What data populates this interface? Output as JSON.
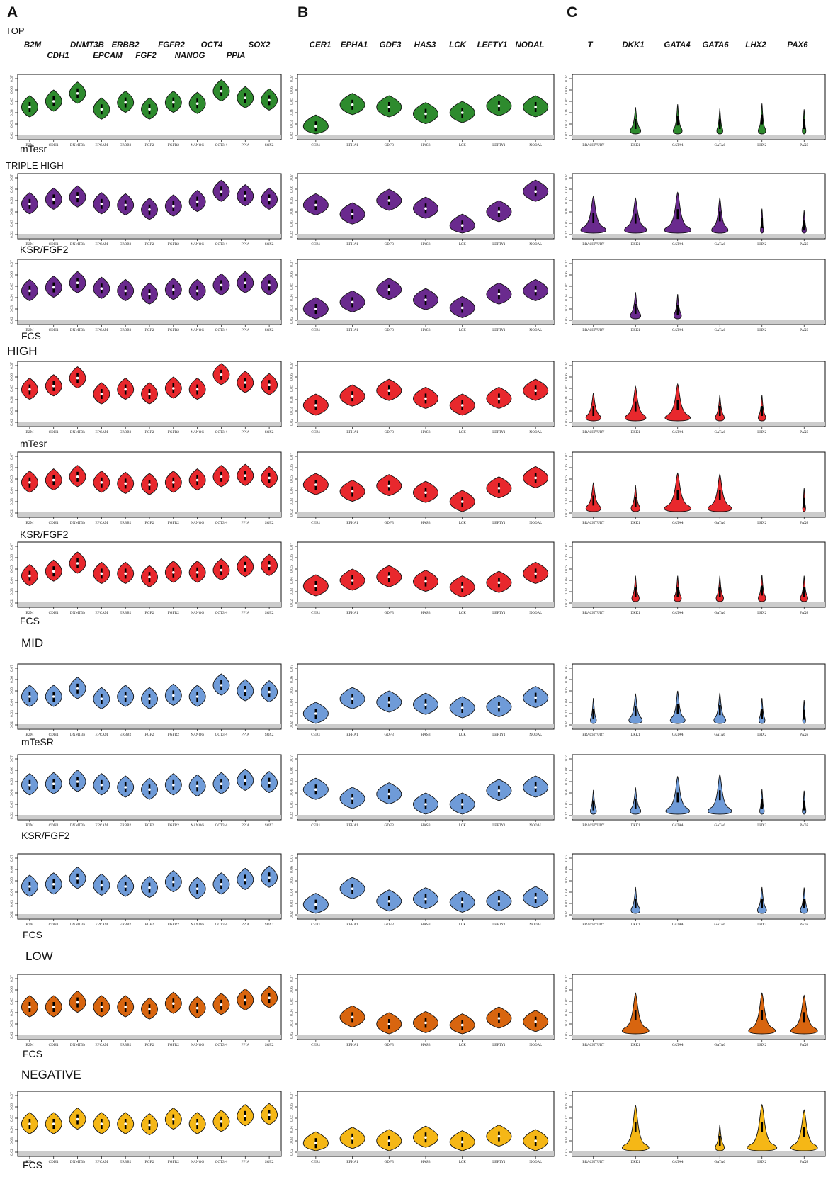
{
  "figure": {
    "panels": [
      "A",
      "B",
      "C"
    ],
    "gene_headers": {
      "A": [
        "B2M",
        "CDH1",
        "DNMT3B",
        "EPCAM",
        "ERBB2",
        "FGF2",
        "FGFR2",
        "NANOG",
        "OCT4",
        "PPIA",
        "SOX2"
      ],
      "B": [
        "CER1",
        "EPHA1",
        "GDF3",
        "HAS3",
        "LCK",
        "LEFTY1",
        "NODAL"
      ],
      "C": [
        "T",
        "DKK1",
        "GATA4",
        "GATA6",
        "LHX2",
        "PAX6"
      ]
    },
    "tier_labels": [
      "TOP",
      "TRIPLE HIGH",
      "HIGH",
      "MID",
      "LOW",
      "NEGATIVE"
    ],
    "condition_labels": [
      "mTesr",
      "KSR/FGF2",
      "FCS",
      "mTesr",
      "KSR/FGF2",
      "FCS",
      "mTeSR",
      "KSR/FGF2",
      "FCS",
      "FCS",
      "FCS"
    ],
    "tier_colors": {
      "TOP": "#2e8b2e",
      "TRIPLE HIGH": "#6a2a8e",
      "HIGH": "#e8282d",
      "MID": "#6f9bd8",
      "LOW": "#d8650f",
      "NEGATIVE": "#f5b716"
    },
    "axis_tick_labels": [
      "0.02",
      "0.03",
      "0.04",
      "0.05",
      "0.06",
      "0.07"
    ]
  },
  "chart_data": {
    "type": "violin",
    "title": "",
    "y_axis_ticks": [
      0.02,
      0.03,
      0.04,
      0.05,
      0.06,
      0.07
    ],
    "panel_tick_labels": {
      "A": [
        "B2M",
        "CDH1",
        "DNMT3b",
        "EPCAM",
        "ERBB2",
        "FGF2",
        "FGFR2",
        "NANOG",
        "OCT3-4",
        "PPIA",
        "SOX2"
      ],
      "B": [
        "CER1",
        "EPHA1",
        "GDF3",
        "HAS3",
        "LCK",
        "LEFTY1",
        "NODAL"
      ],
      "C": [
        "BRACHYURY",
        "DKK1",
        "GATA4",
        "GATA6",
        "LHX2",
        "PAX6"
      ]
    },
    "rows": [
      {
        "tier": "TOP",
        "condition": "mTesr",
        "A": [
          0.045,
          0.05,
          0.057,
          0.043,
          0.049,
          0.043,
          0.049,
          0.048,
          0.059,
          0.053,
          0.051
        ],
        "B": [
          0.028,
          0.047,
          0.045,
          0.039,
          0.04,
          0.046,
          0.045
        ],
        "C": [
          0,
          0.03,
          0.033,
          0.03,
          0.034,
          0.03
        ],
        "C_width": [
          0,
          0.35,
          0.3,
          0.2,
          0.25,
          0.12
        ]
      },
      {
        "tier": "TRIPLE HIGH",
        "condition": "KSR/FGF2",
        "A": [
          0.047,
          0.051,
          0.053,
          0.047,
          0.046,
          0.042,
          0.045,
          0.049,
          0.058,
          0.054,
          0.051
        ],
        "B": [
          0.046,
          0.038,
          0.05,
          0.043,
          0.028,
          0.04,
          0.058
        ],
        "C": [
          0.035,
          0.034,
          0.038,
          0.036,
          0.03,
          0.028
        ],
        "C_width": [
          0.85,
          0.75,
          0.9,
          0.55,
          0.1,
          0.15
        ]
      },
      {
        "tier": "TRIPLE HIGH",
        "condition": "FCS",
        "A": [
          0.046,
          0.049,
          0.053,
          0.048,
          0.046,
          0.043,
          0.047,
          0.046,
          0.051,
          0.053,
          0.051
        ],
        "B": [
          0.03,
          0.036,
          0.047,
          0.038,
          0.031,
          0.043,
          0.046
        ],
        "C": [
          0,
          0.03,
          0.029,
          0,
          0,
          0
        ],
        "C_width": [
          0,
          0.35,
          0.25,
          0,
          0,
          0
        ]
      },
      {
        "tier": "HIGH",
        "condition": "mTesr",
        "A": [
          0.049,
          0.052,
          0.059,
          0.045,
          0.049,
          0.045,
          0.05,
          0.049,
          0.062,
          0.055,
          0.053
        ],
        "B": [
          0.035,
          0.043,
          0.048,
          0.041,
          0.035,
          0.041,
          0.048
        ],
        "C": [
          0.03,
          0.034,
          0.035,
          0.03,
          0.03,
          0
        ],
        "C_width": [
          0.5,
          0.7,
          0.85,
          0.3,
          0.25,
          0
        ]
      },
      {
        "tier": "HIGH",
        "condition": "KSR/FGF2",
        "A": [
          0.047,
          0.049,
          0.052,
          0.047,
          0.046,
          0.045,
          0.047,
          0.049,
          0.052,
          0.053,
          0.051
        ],
        "B": [
          0.045,
          0.039,
          0.044,
          0.038,
          0.03,
          0.042,
          0.051
        ],
        "C": [
          0.031,
          0.03,
          0.036,
          0.036,
          0,
          0.029
        ],
        "C_width": [
          0.5,
          0.3,
          0.9,
          0.8,
          0,
          0.1
        ]
      },
      {
        "tier": "HIGH",
        "condition": "FCS",
        "A": [
          0.044,
          0.048,
          0.055,
          0.046,
          0.046,
          0.043,
          0.047,
          0.047,
          0.049,
          0.052,
          0.053
        ],
        "B": [
          0.035,
          0.04,
          0.043,
          0.039,
          0.034,
          0.038,
          0.046
        ],
        "C": [
          0,
          0.03,
          0.03,
          0.03,
          0.031,
          0.03
        ],
        "C_width": [
          0,
          0.25,
          0.25,
          0.25,
          0.25,
          0.25
        ]
      },
      {
        "tier": "MID",
        "condition": "mTeSR",
        "A": [
          0.045,
          0.045,
          0.052,
          0.043,
          0.045,
          0.043,
          0.046,
          0.045,
          0.055,
          0.05,
          0.049
        ],
        "B": [
          0.03,
          0.043,
          0.04,
          0.038,
          0.035,
          0.036,
          0.044
        ],
        "C": [
          0.03,
          0.032,
          0.034,
          0.033,
          0.03,
          0.029
        ],
        "C_width": [
          0.2,
          0.45,
          0.5,
          0.4,
          0.2,
          0.1
        ]
      },
      {
        "tier": "MID",
        "condition": "KSR/FGF2",
        "A": [
          0.047,
          0.048,
          0.05,
          0.047,
          0.045,
          0.043,
          0.047,
          0.046,
          0.048,
          0.051,
          0.049
        ],
        "B": [
          0.043,
          0.035,
          0.039,
          0.03,
          0.03,
          0.042,
          0.045
        ],
        "C": [
          0.029,
          0.03,
          0.036,
          0.038,
          0.03,
          0.029
        ],
        "C_width": [
          0.2,
          0.35,
          0.8,
          0.8,
          0.15,
          0.12
        ]
      },
      {
        "tier": "MID",
        "condition": "FCS",
        "A": [
          0.045,
          0.047,
          0.052,
          0.046,
          0.045,
          0.044,
          0.049,
          0.043,
          0.047,
          0.051,
          0.053
        ],
        "B": [
          0.029,
          0.043,
          0.032,
          0.034,
          0.031,
          0.032,
          0.035
        ],
        "C": [
          0,
          0.03,
          0,
          0,
          0.03,
          0.03
        ],
        "C_width": [
          0,
          0.3,
          0,
          0,
          0.3,
          0.25
        ]
      },
      {
        "tier": "LOW",
        "condition": "FCS",
        "A": [
          0.045,
          0.045,
          0.049,
          0.045,
          0.045,
          0.043,
          0.048,
          0.044,
          0.047,
          0.051,
          0.053
        ],
        "B": [
          0,
          0.036,
          0.03,
          0.031,
          0.029,
          0.035,
          0.032
        ],
        "C": [
          0,
          0.038,
          0,
          0,
          0.038,
          0.036
        ],
        "C_width": [
          0,
          0.9,
          0,
          0,
          0.9,
          0.9
        ]
      },
      {
        "tier": "NEGATIVE",
        "condition": "FCS",
        "A": [
          0.045,
          0.045,
          0.049,
          0.045,
          0.045,
          0.044,
          0.049,
          0.045,
          0.047,
          0.052,
          0.053
        ],
        "B": [
          0.028,
          0.032,
          0.03,
          0.033,
          0.029,
          0.034,
          0.03
        ],
        "C": [
          0,
          0.042,
          0,
          0.03,
          0.042,
          0.038
        ],
        "C_width": [
          0,
          0.9,
          0,
          0.3,
          1.0,
          0.9
        ]
      }
    ]
  }
}
